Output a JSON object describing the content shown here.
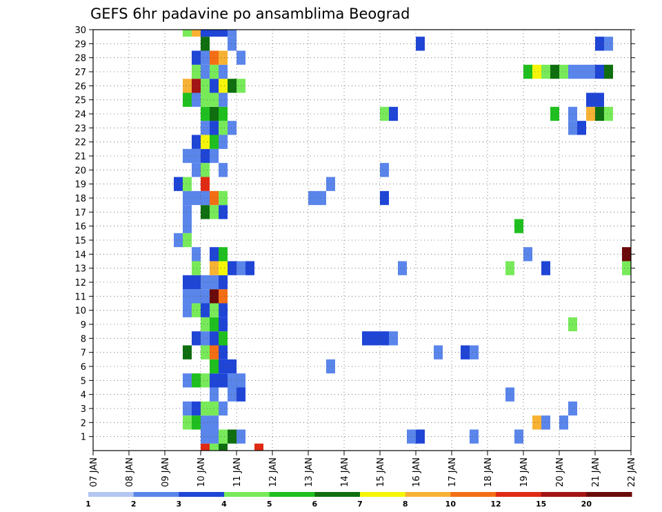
{
  "chart_data": {
    "type": "heatmap",
    "title": "GEFS 6hr padavine po ansamblima Beograd",
    "xlabel": "",
    "ylabel": "",
    "x_tick_labels": [
      "07 JAN",
      "08 JAN",
      "09 JAN",
      "10 JAN",
      "11 JAN",
      "12 JAN",
      "13 JAN",
      "14 JAN",
      "15 JAN",
      "16 JAN",
      "17 JAN",
      "18 JAN",
      "19 JAN",
      "20 JAN",
      "21 JAN",
      "22 JAN"
    ],
    "y_ticks": [
      1,
      2,
      3,
      4,
      5,
      6,
      7,
      8,
      9,
      10,
      11,
      12,
      13,
      14,
      15,
      16,
      17,
      18,
      19,
      20,
      21,
      22,
      23,
      24,
      25,
      26,
      27,
      28,
      29,
      30
    ],
    "ylim": [
      0,
      30
    ],
    "grid": true,
    "time_step_hours": 6,
    "colorbar": {
      "labels": [
        "1",
        "2",
        "3",
        "4",
        "5",
        "6",
        "7",
        "8",
        "10",
        "12",
        "15",
        "20"
      ],
      "colors": [
        "#b3c6f2",
        "#5a85ea",
        "#1f45d6",
        "#78ea5a",
        "#1fbf1f",
        "#0f6e0f",
        "#f5f50a",
        "#f7b233",
        "#f46e14",
        "#e02a14",
        "#a31414",
        "#6b0a0a"
      ]
    },
    "cells": [
      [
        12,
        0,
        9
      ],
      [
        13,
        0,
        3
      ],
      [
        14,
        0,
        5
      ],
      [
        18,
        0,
        9
      ],
      [
        12,
        1,
        1
      ],
      [
        13,
        1,
        1
      ],
      [
        14,
        1,
        3
      ],
      [
        15,
        1,
        5
      ],
      [
        16,
        1,
        1
      ],
      [
        35,
        1,
        1
      ],
      [
        36,
        1,
        2
      ],
      [
        42,
        1,
        1
      ],
      [
        47,
        1,
        1
      ],
      [
        10,
        2,
        3
      ],
      [
        11,
        2,
        4
      ],
      [
        12,
        2,
        1
      ],
      [
        13,
        2,
        1
      ],
      [
        49,
        2,
        7
      ],
      [
        50,
        2,
        1
      ],
      [
        52,
        2,
        1
      ],
      [
        10,
        3,
        1
      ],
      [
        11,
        3,
        2
      ],
      [
        12,
        3,
        3
      ],
      [
        13,
        3,
        3
      ],
      [
        14,
        3,
        1
      ],
      [
        53,
        3,
        1
      ],
      [
        13,
        4,
        1
      ],
      [
        15,
        4,
        1
      ],
      [
        16,
        4,
        2
      ],
      [
        46,
        4,
        1
      ],
      [
        10,
        5,
        1
      ],
      [
        11,
        5,
        4
      ],
      [
        12,
        5,
        3
      ],
      [
        13,
        5,
        2
      ],
      [
        14,
        5,
        2
      ],
      [
        15,
        5,
        1
      ],
      [
        16,
        5,
        1
      ],
      [
        13,
        6,
        4
      ],
      [
        14,
        6,
        2
      ],
      [
        15,
        6,
        2
      ],
      [
        26,
        6,
        1
      ],
      [
        10,
        7,
        5
      ],
      [
        12,
        7,
        3
      ],
      [
        13,
        7,
        8
      ],
      [
        14,
        7,
        2
      ],
      [
        38,
        7,
        1
      ],
      [
        41,
        7,
        2
      ],
      [
        42,
        7,
        1
      ],
      [
        11,
        8,
        2
      ],
      [
        12,
        8,
        1
      ],
      [
        13,
        8,
        2
      ],
      [
        14,
        8,
        4
      ],
      [
        30,
        8,
        2
      ],
      [
        31,
        8,
        2
      ],
      [
        32,
        8,
        2
      ],
      [
        33,
        8,
        1
      ],
      [
        12,
        9,
        3
      ],
      [
        13,
        9,
        4
      ],
      [
        14,
        9,
        2
      ],
      [
        53,
        9,
        3
      ],
      [
        10,
        10,
        1
      ],
      [
        11,
        10,
        3
      ],
      [
        12,
        10,
        2
      ],
      [
        13,
        10,
        3
      ],
      [
        14,
        10,
        2
      ],
      [
        10,
        11,
        1
      ],
      [
        11,
        11,
        1
      ],
      [
        12,
        11,
        1
      ],
      [
        13,
        11,
        11
      ],
      [
        14,
        11,
        8
      ],
      [
        10,
        12,
        2
      ],
      [
        11,
        12,
        2
      ],
      [
        12,
        12,
        1
      ],
      [
        13,
        12,
        1
      ],
      [
        14,
        12,
        2
      ],
      [
        11,
        13,
        3
      ],
      [
        13,
        13,
        7
      ],
      [
        14,
        13,
        6
      ],
      [
        15,
        13,
        2
      ],
      [
        16,
        13,
        1
      ],
      [
        17,
        13,
        2
      ],
      [
        34,
        13,
        1
      ],
      [
        46,
        13,
        3
      ],
      [
        50,
        13,
        2
      ],
      [
        59,
        13,
        3
      ],
      [
        11,
        14,
        1
      ],
      [
        13,
        14,
        2
      ],
      [
        14,
        14,
        4
      ],
      [
        48,
        14,
        1
      ],
      [
        59,
        14,
        11
      ],
      [
        9,
        15,
        1
      ],
      [
        10,
        15,
        3
      ],
      [
        10,
        16,
        1
      ],
      [
        47,
        16,
        4
      ],
      [
        10,
        17,
        1
      ],
      [
        12,
        17,
        5
      ],
      [
        13,
        17,
        3
      ],
      [
        14,
        17,
        2
      ],
      [
        10,
        18,
        1
      ],
      [
        11,
        18,
        1
      ],
      [
        12,
        18,
        1
      ],
      [
        13,
        18,
        8
      ],
      [
        14,
        18,
        3
      ],
      [
        24,
        18,
        1
      ],
      [
        25,
        18,
        1
      ],
      [
        32,
        18,
        2
      ],
      [
        12,
        19,
        9
      ],
      [
        26,
        19,
        1
      ],
      [
        9,
        19,
        2
      ],
      [
        10,
        19,
        3
      ],
      [
        11,
        20,
        1
      ],
      [
        12,
        20,
        3
      ],
      [
        14,
        20,
        1
      ],
      [
        32,
        20,
        1
      ],
      [
        10,
        21,
        1
      ],
      [
        11,
        21,
        1
      ],
      [
        12,
        21,
        2
      ],
      [
        13,
        21,
        1
      ],
      [
        11,
        22,
        2
      ],
      [
        12,
        22,
        6
      ],
      [
        13,
        22,
        4
      ],
      [
        14,
        22,
        1
      ],
      [
        12,
        23,
        1
      ],
      [
        13,
        23,
        2
      ],
      [
        14,
        23,
        3
      ],
      [
        15,
        23,
        1
      ],
      [
        53,
        23,
        1
      ],
      [
        54,
        23,
        2
      ],
      [
        12,
        24,
        4
      ],
      [
        13,
        24,
        5
      ],
      [
        14,
        24,
        4
      ],
      [
        32,
        24,
        3
      ],
      [
        33,
        24,
        2
      ],
      [
        51,
        24,
        4
      ],
      [
        53,
        24,
        1
      ],
      [
        55,
        24,
        7
      ],
      [
        56,
        24,
        5
      ],
      [
        57,
        24,
        3
      ],
      [
        10,
        25,
        4
      ],
      [
        11,
        25,
        1
      ],
      [
        12,
        25,
        3
      ],
      [
        13,
        25,
        3
      ],
      [
        14,
        25,
        1
      ],
      [
        55,
        25,
        2
      ],
      [
        56,
        25,
        2
      ],
      [
        10,
        26,
        7
      ],
      [
        11,
        26,
        10
      ],
      [
        12,
        26,
        3
      ],
      [
        13,
        26,
        2
      ],
      [
        14,
        26,
        6
      ],
      [
        15,
        26,
        5
      ],
      [
        16,
        26,
        3
      ],
      [
        11,
        27,
        3
      ],
      [
        12,
        27,
        1
      ],
      [
        13,
        27,
        3
      ],
      [
        14,
        27,
        1
      ],
      [
        48,
        27,
        4
      ],
      [
        49,
        27,
        6
      ],
      [
        50,
        27,
        3
      ],
      [
        51,
        27,
        5
      ],
      [
        52,
        27,
        3
      ],
      [
        53,
        27,
        1
      ],
      [
        54,
        27,
        1
      ],
      [
        55,
        27,
        1
      ],
      [
        56,
        27,
        2
      ],
      [
        57,
        27,
        5
      ],
      [
        11,
        28,
        2
      ],
      [
        12,
        28,
        1
      ],
      [
        13,
        28,
        8
      ],
      [
        14,
        28,
        7
      ],
      [
        16,
        28,
        1
      ],
      [
        12,
        29,
        5
      ],
      [
        15,
        29,
        1
      ],
      [
        36,
        29,
        2
      ],
      [
        56,
        29,
        2
      ],
      [
        57,
        29,
        1
      ],
      [
        10,
        30,
        3
      ],
      [
        11,
        30,
        7
      ],
      [
        12,
        30,
        2
      ],
      [
        13,
        30,
        2
      ],
      [
        14,
        30,
        2
      ],
      [
        15,
        30,
        1
      ]
    ]
  }
}
